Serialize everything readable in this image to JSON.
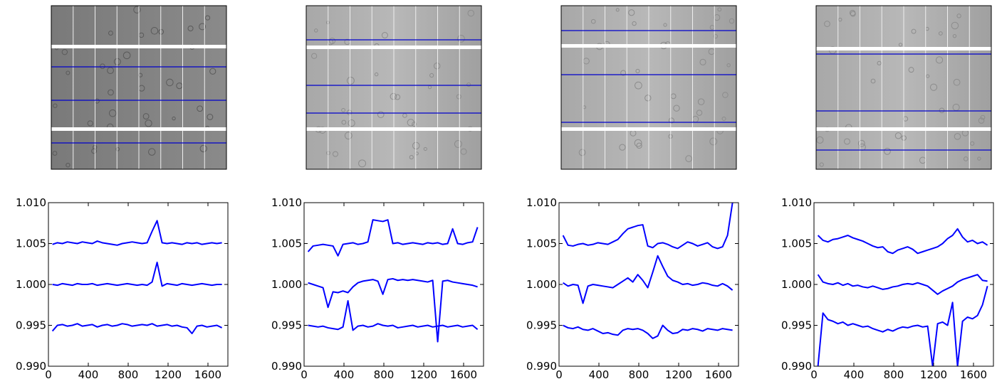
{
  "chart_data": [
    {
      "type": "line",
      "x": [
        40,
        90,
        140,
        190,
        240,
        290,
        340,
        390,
        440,
        490,
        540,
        590,
        640,
        690,
        740,
        790,
        840,
        890,
        940,
        990,
        1040,
        1090,
        1140,
        1190,
        1240,
        1290,
        1340,
        1390,
        1440,
        1490,
        1540,
        1590,
        1640,
        1690,
        1740
      ],
      "series": [
        {
          "color": "#0000ff",
          "values": [
            1.0049,
            1.0051,
            1.005,
            1.0052,
            1.0051,
            1.005,
            1.0052,
            1.0051,
            1.005,
            1.0053,
            1.0051,
            1.005,
            1.0049,
            1.0048,
            1.005,
            1.0051,
            1.0052,
            1.0051,
            1.005,
            1.0051,
            1.0065,
            1.0078,
            1.0051,
            1.005,
            1.0051,
            1.005,
            1.0049,
            1.0051,
            1.005,
            1.0051,
            1.0049,
            1.005,
            1.0051,
            1.005,
            1.0051
          ]
        },
        {
          "color": "#0000ff",
          "values": [
            1.0,
            0.9999,
            1.0001,
            1.0,
            0.9999,
            1.0001,
            1.0,
            1.0,
            1.0001,
            0.9999,
            1.0,
            1.0001,
            1.0,
            0.9999,
            1.0,
            1.0001,
            1.0,
            0.9999,
            1.0,
            0.9999,
            1.0003,
            1.0027,
            0.9998,
            1.0001,
            1.0,
            0.9999,
            1.0001,
            1.0,
            0.9999,
            1.0,
            1.0001,
            1.0,
            0.9999,
            1.0,
            1.0
          ]
        },
        {
          "color": "#0000ff",
          "values": [
            0.9943,
            0.995,
            0.9951,
            0.9949,
            0.995,
            0.9952,
            0.9949,
            0.995,
            0.9951,
            0.9948,
            0.995,
            0.9951,
            0.9949,
            0.995,
            0.9952,
            0.9951,
            0.9949,
            0.995,
            0.9951,
            0.995,
            0.9952,
            0.9949,
            0.995,
            0.9951,
            0.9949,
            0.995,
            0.9948,
            0.9947,
            0.994,
            0.9949,
            0.995,
            0.9948,
            0.9949,
            0.995,
            0.9947
          ]
        }
      ],
      "xlim": [
        0,
        1800
      ],
      "ylim": [
        0.99,
        1.01
      ],
      "xticks": [
        0,
        400,
        800,
        1200,
        1600
      ],
      "yticks": [
        {
          "value": 0.99,
          "label": "0.990"
        },
        0.995,
        {
          "value": 1.0,
          "label": "1.000"
        },
        1.005,
        {
          "value": 1.01,
          "label": "1.010"
        }
      ]
    },
    {
      "type": "line",
      "x": [
        40,
        90,
        140,
        190,
        240,
        290,
        340,
        390,
        440,
        490,
        540,
        590,
        640,
        690,
        740,
        790,
        840,
        890,
        940,
        990,
        1040,
        1090,
        1140,
        1190,
        1240,
        1290,
        1340,
        1390,
        1440,
        1490,
        1540,
        1590,
        1640,
        1690,
        1740
      ],
      "series": [
        {
          "color": "#0000ff",
          "values": [
            1.004,
            1.0047,
            1.0048,
            1.0049,
            1.0048,
            1.0047,
            1.0035,
            1.0049,
            1.005,
            1.0051,
            1.0049,
            1.005,
            1.0052,
            1.0079,
            1.0078,
            1.0077,
            1.0079,
            1.005,
            1.0051,
            1.0049,
            1.005,
            1.0051,
            1.005,
            1.0049,
            1.0051,
            1.005,
            1.0051,
            1.0049,
            1.005,
            1.0068,
            1.005,
            1.0049,
            1.0051,
            1.0052,
            1.007
          ]
        },
        {
          "color": "#0000ff",
          "values": [
            1.0002,
            1.0,
            0.9998,
            0.9996,
            0.9972,
            0.9991,
            0.999,
            0.9992,
            0.999,
            0.9997,
            1.0002,
            1.0004,
            1.0005,
            1.0006,
            1.0004,
            0.9988,
            1.0006,
            1.0007,
            1.0005,
            1.0006,
            1.0005,
            1.0006,
            1.0005,
            1.0004,
            1.0003,
            1.0005,
            0.993,
            1.0004,
            1.0005,
            1.0003,
            1.0002,
            1.0001,
            1.0,
            0.9999,
            0.9997
          ]
        },
        {
          "color": "#0000ff",
          "values": [
            0.995,
            0.9949,
            0.9948,
            0.9949,
            0.9947,
            0.9946,
            0.9945,
            0.9948,
            0.998,
            0.9944,
            0.9949,
            0.995,
            0.9948,
            0.9949,
            0.9952,
            0.995,
            0.9949,
            0.995,
            0.9947,
            0.9948,
            0.9949,
            0.995,
            0.9948,
            0.9949,
            0.995,
            0.9948,
            0.9949,
            0.995,
            0.9948,
            0.9949,
            0.995,
            0.9948,
            0.9949,
            0.995,
            0.9945
          ]
        }
      ],
      "xlim": [
        0,
        1800
      ],
      "ylim": [
        0.99,
        1.01
      ],
      "xticks": [
        0,
        400,
        800,
        1200,
        1600
      ],
      "yticks": [
        {
          "value": 0.99,
          "label": "0.990"
        },
        0.995,
        {
          "value": 1.0,
          "label": "1.000"
        },
        1.005,
        {
          "value": 1.01,
          "label": "1.010"
        }
      ]
    },
    {
      "type": "line",
      "x": [
        40,
        90,
        140,
        190,
        240,
        290,
        340,
        390,
        440,
        490,
        540,
        590,
        640,
        690,
        740,
        790,
        840,
        890,
        940,
        990,
        1040,
        1090,
        1140,
        1190,
        1240,
        1290,
        1340,
        1390,
        1440,
        1490,
        1540,
        1590,
        1640,
        1690,
        1740
      ],
      "series": [
        {
          "color": "#0000ff",
          "values": [
            1.006,
            1.0048,
            1.0047,
            1.0049,
            1.005,
            1.0048,
            1.0049,
            1.0051,
            1.005,
            1.0049,
            1.0052,
            1.0055,
            1.0062,
            1.0068,
            1.007,
            1.0072,
            1.0073,
            1.0047,
            1.0045,
            1.005,
            1.0051,
            1.0049,
            1.0046,
            1.0044,
            1.0048,
            1.0052,
            1.005,
            1.0047,
            1.0049,
            1.0051,
            1.0046,
            1.0044,
            1.0046,
            1.006,
            1.01
          ]
        },
        {
          "color": "#0000ff",
          "values": [
            1.0002,
            0.9998,
            1.0,
            0.9999,
            0.9977,
            0.9998,
            1.0,
            0.9999,
            0.9998,
            0.9997,
            0.9996,
            1.0,
            1.0004,
            1.0008,
            1.0003,
            1.0012,
            1.0005,
            0.9996,
            1.0015,
            1.0035,
            1.0022,
            1.001,
            1.0005,
            1.0003,
            1.0,
            1.0001,
            0.9999,
            1.0,
            1.0002,
            1.0001,
            0.9999,
            0.9998,
            1.0001,
            0.9998,
            0.9993
          ]
        },
        {
          "color": "#0000ff",
          "values": [
            0.995,
            0.9947,
            0.9946,
            0.9948,
            0.9945,
            0.9944,
            0.9946,
            0.9943,
            0.994,
            0.9941,
            0.9939,
            0.9938,
            0.9944,
            0.9946,
            0.9945,
            0.9946,
            0.9944,
            0.994,
            0.9934,
            0.9937,
            0.995,
            0.9944,
            0.994,
            0.9941,
            0.9945,
            0.9944,
            0.9946,
            0.9945,
            0.9943,
            0.9946,
            0.9945,
            0.9944,
            0.9946,
            0.9945,
            0.9944
          ]
        }
      ],
      "xlim": [
        0,
        1800
      ],
      "ylim": [
        0.99,
        1.01
      ],
      "xticks": [
        0,
        400,
        800,
        1200,
        1600
      ],
      "yticks": [
        {
          "value": 0.99,
          "label": "0.990"
        },
        0.995,
        {
          "value": 1.0,
          "label": "1.000"
        },
        1.005,
        {
          "value": 1.01,
          "label": "1.010"
        }
      ]
    },
    {
      "type": "line",
      "x": [
        40,
        90,
        140,
        190,
        240,
        290,
        340,
        390,
        440,
        490,
        540,
        590,
        640,
        690,
        740,
        790,
        840,
        890,
        940,
        990,
        1040,
        1090,
        1140,
        1190,
        1240,
        1290,
        1340,
        1390,
        1440,
        1490,
        1540,
        1590,
        1640,
        1690,
        1740
      ],
      "series": [
        {
          "color": "#0000ff",
          "values": [
            1.006,
            1.0054,
            1.0052,
            1.0055,
            1.0056,
            1.0058,
            1.006,
            1.0057,
            1.0055,
            1.0053,
            1.005,
            1.0047,
            1.0045,
            1.0046,
            1.004,
            1.0038,
            1.0042,
            1.0044,
            1.0046,
            1.0043,
            1.0038,
            1.004,
            1.0042,
            1.0044,
            1.0046,
            1.005,
            1.0056,
            1.006,
            1.0068,
            1.0058,
            1.0052,
            1.0054,
            1.005,
            1.0052,
            1.0048
          ]
        },
        {
          "color": "#0000ff",
          "values": [
            1.0012,
            1.0003,
            1.0001,
            1.0,
            1.0002,
            0.9999,
            1.0001,
            0.9998,
            0.9999,
            0.9997,
            0.9996,
            0.9998,
            0.9996,
            0.9994,
            0.9995,
            0.9997,
            0.9998,
            1.0,
            1.0001,
            1.0,
            1.0002,
            1.0,
            0.9998,
            0.9993,
            0.9988,
            0.9992,
            0.9995,
            0.9998,
            1.0003,
            1.0006,
            1.0008,
            1.001,
            1.0012,
            1.0005,
            1.0004
          ]
        },
        {
          "color": "#0000ff",
          "values": [
            0.99,
            0.9965,
            0.9957,
            0.9955,
            0.9952,
            0.9954,
            0.995,
            0.9952,
            0.995,
            0.9948,
            0.9949,
            0.9946,
            0.9944,
            0.9942,
            0.9945,
            0.9943,
            0.9946,
            0.9948,
            0.9947,
            0.9949,
            0.995,
            0.9948,
            0.9949,
            0.99,
            0.9952,
            0.9954,
            0.995,
            0.9978,
            0.99,
            0.9955,
            0.996,
            0.9958,
            0.9962,
            0.9975,
            0.9998
          ]
        }
      ],
      "xlim": [
        0,
        1800
      ],
      "ylim": [
        0.99,
        1.01
      ],
      "xticks": [
        0,
        400,
        800,
        1200,
        1600
      ],
      "yticks": [
        {
          "value": 0.99,
          "label": "0.990"
        },
        0.995,
        {
          "value": 1.0,
          "label": "1.000"
        },
        1.005,
        {
          "value": 1.01,
          "label": "1.010"
        }
      ]
    }
  ]
}
